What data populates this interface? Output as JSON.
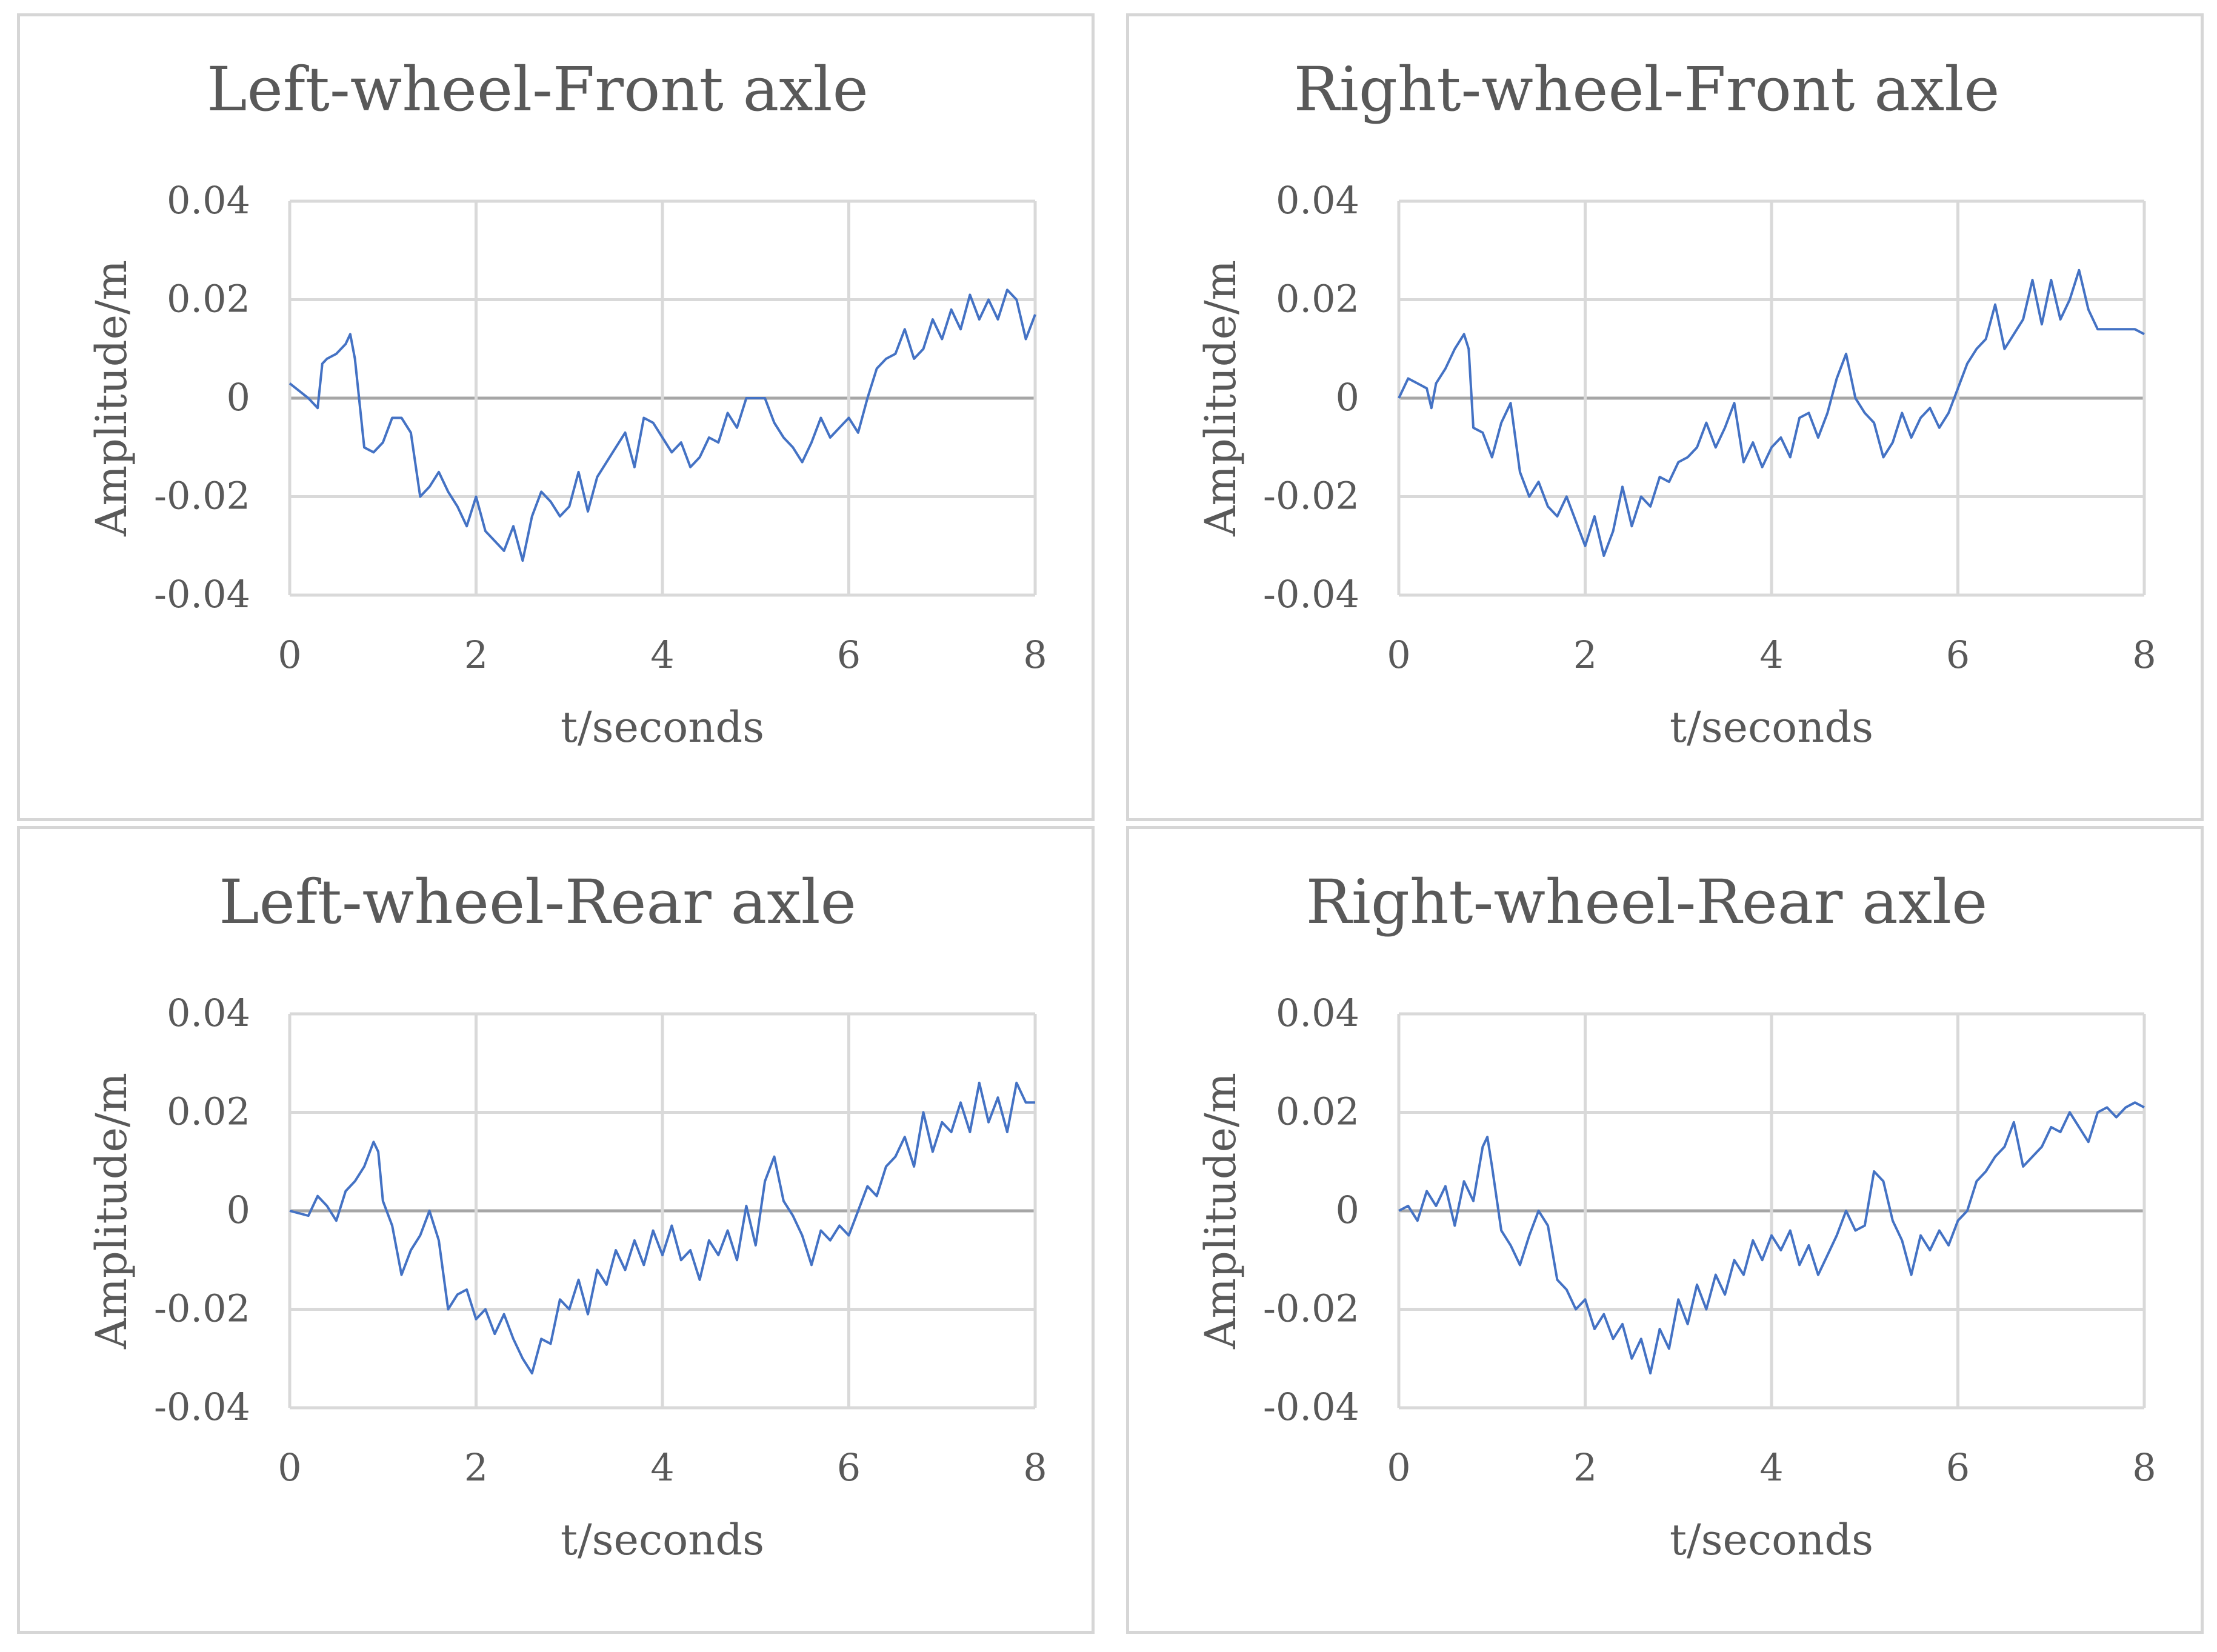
{
  "colors": {
    "line": "#4472c4",
    "grid": "#d9d9d9",
    "zero": "#a6a6a6",
    "text": "#595959",
    "border": "#d6d6d6"
  },
  "chart_data": [
    {
      "type": "line",
      "title": "Left-wheel-Front axle",
      "xlabel": "t/seconds",
      "ylabel": "Amplitude/m",
      "xlim": [
        0,
        8
      ],
      "ylim": [
        -0.04,
        0.04
      ],
      "xticks": [
        "0",
        "2",
        "4",
        "6",
        "8"
      ],
      "yticks": [
        "0.04",
        "0.02",
        "0",
        "-0.02",
        "-0.04"
      ],
      "grid": true,
      "series": [
        {
          "x": [
            0,
            0.2,
            0.3,
            0.35,
            0.4,
            0.5,
            0.6,
            0.65,
            0.7,
            0.8,
            0.9,
            1.0,
            1.1,
            1.2,
            1.3,
            1.4,
            1.5,
            1.6,
            1.7,
            1.8,
            1.9,
            2.0,
            2.1,
            2.2,
            2.3,
            2.4,
            2.5,
            2.6,
            2.7,
            2.8,
            2.9,
            3.0,
            3.1,
            3.2,
            3.3,
            3.4,
            3.5,
            3.6,
            3.7,
            3.8,
            3.9,
            4.0,
            4.1,
            4.2,
            4.3,
            4.4,
            4.5,
            4.6,
            4.7,
            4.8,
            4.9,
            5.0,
            5.1,
            5.2,
            5.3,
            5.4,
            5.5,
            5.6,
            5.7,
            5.8,
            5.9,
            6.0,
            6.1,
            6.2,
            6.3,
            6.4,
            6.5,
            6.6,
            6.7,
            6.8,
            6.9,
            7.0,
            7.1,
            7.2,
            7.3,
            7.4,
            7.5,
            7.6,
            7.7,
            7.8,
            7.9,
            8.0
          ],
          "values": [
            0.003,
            0.0,
            -0.002,
            0.007,
            0.008,
            0.009,
            0.011,
            0.013,
            0.008,
            -0.01,
            -0.011,
            -0.009,
            -0.004,
            -0.004,
            -0.007,
            -0.02,
            -0.018,
            -0.015,
            -0.019,
            -0.022,
            -0.026,
            -0.02,
            -0.027,
            -0.029,
            -0.031,
            -0.026,
            -0.033,
            -0.024,
            -0.019,
            -0.021,
            -0.024,
            -0.022,
            -0.015,
            -0.023,
            -0.016,
            -0.013,
            -0.01,
            -0.007,
            -0.014,
            -0.004,
            -0.005,
            -0.008,
            -0.011,
            -0.009,
            -0.014,
            -0.012,
            -0.008,
            -0.009,
            -0.003,
            -0.006,
            0.0,
            0.0,
            0.0,
            -0.005,
            -0.008,
            -0.01,
            -0.013,
            -0.009,
            -0.004,
            -0.008,
            -0.006,
            -0.004,
            -0.007,
            0.0,
            0.006,
            0.008,
            0.009,
            0.014,
            0.008,
            0.01,
            0.016,
            0.012,
            0.018,
            0.014,
            0.021,
            0.016,
            0.02,
            0.016,
            0.022,
            0.02,
            0.012,
            0.017
          ]
        }
      ]
    },
    {
      "type": "line",
      "title": "Right-wheel-Front axle",
      "xlabel": "t/seconds",
      "ylabel": "Amplitude/m",
      "xlim": [
        0,
        8
      ],
      "ylim": [
        -0.04,
        0.04
      ],
      "xticks": [
        "0",
        "2",
        "4",
        "6",
        "8"
      ],
      "yticks": [
        "0.04",
        "0.02",
        "0",
        "-0.02",
        "-0.04"
      ],
      "grid": true,
      "series": [
        {
          "x": [
            0,
            0.1,
            0.2,
            0.3,
            0.35,
            0.4,
            0.5,
            0.6,
            0.7,
            0.75,
            0.8,
            0.9,
            1.0,
            1.1,
            1.2,
            1.3,
            1.4,
            1.5,
            1.6,
            1.7,
            1.8,
            1.9,
            2.0,
            2.1,
            2.2,
            2.3,
            2.4,
            2.5,
            2.6,
            2.7,
            2.8,
            2.9,
            3.0,
            3.1,
            3.2,
            3.3,
            3.4,
            3.5,
            3.6,
            3.7,
            3.8,
            3.9,
            4.0,
            4.1,
            4.2,
            4.3,
            4.4,
            4.5,
            4.6,
            4.7,
            4.8,
            4.9,
            5.0,
            5.1,
            5.2,
            5.3,
            5.4,
            5.5,
            5.6,
            5.7,
            5.8,
            5.9,
            6.0,
            6.1,
            6.2,
            6.3,
            6.4,
            6.5,
            6.6,
            6.7,
            6.8,
            6.9,
            7.0,
            7.1,
            7.2,
            7.3,
            7.4,
            7.5,
            7.6,
            7.7,
            7.8,
            7.9,
            8.0
          ],
          "values": [
            0.0,
            0.004,
            0.003,
            0.002,
            -0.002,
            0.003,
            0.006,
            0.01,
            0.013,
            0.01,
            -0.006,
            -0.007,
            -0.012,
            -0.005,
            -0.001,
            -0.015,
            -0.02,
            -0.017,
            -0.022,
            -0.024,
            -0.02,
            -0.025,
            -0.03,
            -0.024,
            -0.032,
            -0.027,
            -0.018,
            -0.026,
            -0.02,
            -0.022,
            -0.016,
            -0.017,
            -0.013,
            -0.012,
            -0.01,
            -0.005,
            -0.01,
            -0.006,
            -0.001,
            -0.013,
            -0.009,
            -0.014,
            -0.01,
            -0.008,
            -0.012,
            -0.004,
            -0.003,
            -0.008,
            -0.003,
            0.004,
            0.009,
            0.0,
            -0.003,
            -0.005,
            -0.012,
            -0.009,
            -0.003,
            -0.008,
            -0.004,
            -0.002,
            -0.006,
            -0.003,
            0.002,
            0.007,
            0.01,
            0.012,
            0.019,
            0.01,
            0.013,
            0.016,
            0.024,
            0.015,
            0.024,
            0.016,
            0.02,
            0.026,
            0.018,
            0.014,
            0.014,
            0.014,
            0.014,
            0.014,
            0.013
          ]
        }
      ]
    },
    {
      "type": "line",
      "title": "Left-wheel-Rear axle",
      "xlabel": "t/seconds",
      "ylabel": "Amplitude/m",
      "xlim": [
        0,
        8
      ],
      "ylim": [
        -0.04,
        0.04
      ],
      "xticks": [
        "0",
        "2",
        "4",
        "6",
        "8"
      ],
      "yticks": [
        "0.04",
        "0.02",
        "0",
        "-0.02",
        "-0.04"
      ],
      "grid": true,
      "series": [
        {
          "x": [
            0,
            0.2,
            0.3,
            0.4,
            0.5,
            0.6,
            0.7,
            0.8,
            0.9,
            0.95,
            1.0,
            1.1,
            1.2,
            1.3,
            1.4,
            1.5,
            1.6,
            1.7,
            1.8,
            1.9,
            2.0,
            2.1,
            2.2,
            2.3,
            2.4,
            2.5,
            2.6,
            2.7,
            2.8,
            2.9,
            3.0,
            3.1,
            3.2,
            3.3,
            3.4,
            3.5,
            3.6,
            3.7,
            3.8,
            3.9,
            4.0,
            4.1,
            4.2,
            4.3,
            4.4,
            4.5,
            4.6,
            4.7,
            4.8,
            4.9,
            5.0,
            5.1,
            5.2,
            5.3,
            5.4,
            5.5,
            5.6,
            5.7,
            5.8,
            5.9,
            6.0,
            6.1,
            6.2,
            6.3,
            6.4,
            6.5,
            6.6,
            6.7,
            6.8,
            6.9,
            7.0,
            7.1,
            7.2,
            7.3,
            7.4,
            7.5,
            7.6,
            7.7,
            7.8,
            7.9,
            8.0
          ],
          "values": [
            0.0,
            -0.001,
            0.003,
            0.001,
            -0.002,
            0.004,
            0.006,
            0.009,
            0.014,
            0.012,
            0.002,
            -0.003,
            -0.013,
            -0.008,
            -0.005,
            0.0,
            -0.006,
            -0.02,
            -0.017,
            -0.016,
            -0.022,
            -0.02,
            -0.025,
            -0.021,
            -0.026,
            -0.03,
            -0.033,
            -0.026,
            -0.027,
            -0.018,
            -0.02,
            -0.014,
            -0.021,
            -0.012,
            -0.015,
            -0.008,
            -0.012,
            -0.006,
            -0.011,
            -0.004,
            -0.009,
            -0.003,
            -0.01,
            -0.008,
            -0.014,
            -0.006,
            -0.009,
            -0.004,
            -0.01,
            0.001,
            -0.007,
            0.006,
            0.011,
            0.002,
            -0.001,
            -0.005,
            -0.011,
            -0.004,
            -0.006,
            -0.003,
            -0.005,
            0.0,
            0.005,
            0.003,
            0.009,
            0.011,
            0.015,
            0.009,
            0.02,
            0.012,
            0.018,
            0.016,
            0.022,
            0.016,
            0.026,
            0.018,
            0.023,
            0.016,
            0.026,
            0.022,
            0.022
          ]
        }
      ]
    },
    {
      "type": "line",
      "title": "Right-wheel-Rear axle",
      "xlabel": "t/seconds",
      "ylabel": "Amplitude/m",
      "xlim": [
        0,
        8
      ],
      "ylim": [
        -0.04,
        0.04
      ],
      "xticks": [
        "0",
        "2",
        "4",
        "6",
        "8"
      ],
      "yticks": [
        "0.04",
        "0.02",
        "0",
        "-0.02",
        "-0.04"
      ],
      "grid": true,
      "series": [
        {
          "x": [
            0,
            0.1,
            0.2,
            0.3,
            0.4,
            0.5,
            0.6,
            0.7,
            0.8,
            0.9,
            0.95,
            1.0,
            1.1,
            1.2,
            1.3,
            1.4,
            1.5,
            1.6,
            1.7,
            1.8,
            1.9,
            2.0,
            2.1,
            2.2,
            2.3,
            2.4,
            2.5,
            2.6,
            2.7,
            2.8,
            2.9,
            3.0,
            3.1,
            3.2,
            3.3,
            3.4,
            3.5,
            3.6,
            3.7,
            3.8,
            3.9,
            4.0,
            4.1,
            4.2,
            4.3,
            4.4,
            4.5,
            4.6,
            4.7,
            4.8,
            4.9,
            5.0,
            5.1,
            5.2,
            5.3,
            5.4,
            5.5,
            5.6,
            5.7,
            5.8,
            5.9,
            6.0,
            6.1,
            6.2,
            6.3,
            6.4,
            6.5,
            6.6,
            6.7,
            6.8,
            6.9,
            7.0,
            7.1,
            7.2,
            7.3,
            7.4,
            7.5,
            7.6,
            7.7,
            7.8,
            7.9,
            8.0
          ],
          "values": [
            0.0,
            0.001,
            -0.002,
            0.004,
            0.001,
            0.005,
            -0.003,
            0.006,
            0.002,
            0.013,
            0.015,
            0.009,
            -0.004,
            -0.007,
            -0.011,
            -0.005,
            0.0,
            -0.003,
            -0.014,
            -0.016,
            -0.02,
            -0.018,
            -0.024,
            -0.021,
            -0.026,
            -0.023,
            -0.03,
            -0.026,
            -0.033,
            -0.024,
            -0.028,
            -0.018,
            -0.023,
            -0.015,
            -0.02,
            -0.013,
            -0.017,
            -0.01,
            -0.013,
            -0.006,
            -0.01,
            -0.005,
            -0.008,
            -0.004,
            -0.011,
            -0.007,
            -0.013,
            -0.009,
            -0.005,
            0.0,
            -0.004,
            -0.003,
            0.008,
            0.006,
            -0.002,
            -0.006,
            -0.013,
            -0.005,
            -0.008,
            -0.004,
            -0.007,
            -0.002,
            0.0,
            0.006,
            0.008,
            0.011,
            0.013,
            0.018,
            0.009,
            0.011,
            0.013,
            0.017,
            0.016,
            0.02,
            0.017,
            0.014,
            0.02,
            0.021,
            0.019,
            0.021,
            0.022,
            0.021
          ]
        }
      ]
    }
  ]
}
